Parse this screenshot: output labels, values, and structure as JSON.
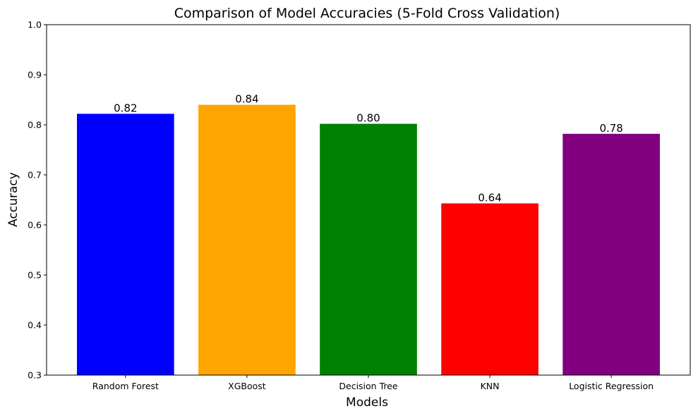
{
  "chart_data": {
    "type": "bar",
    "title": "Comparison of Model Accuracies (5-Fold Cross Validation)",
    "xlabel": "Models",
    "ylabel": "Accuracy",
    "categories": [
      "Random Forest",
      "XGBoost",
      "Decision Tree",
      "KNN",
      "Logistic Regression"
    ],
    "values": [
      0.822,
      0.84,
      0.802,
      0.643,
      0.782
    ],
    "value_labels": [
      "0.82",
      "0.84",
      "0.80",
      "0.64",
      "0.78"
    ],
    "colors": [
      "#0000ff",
      "#ffa500",
      "#008000",
      "#ff0000",
      "#800080"
    ],
    "ylim": [
      0.3,
      1.0
    ],
    "yticks": [
      0.3,
      0.4,
      0.5,
      0.6,
      0.7,
      0.8,
      0.9,
      1.0
    ],
    "ytick_labels": [
      "0.3",
      "0.4",
      "0.5",
      "0.6",
      "0.7",
      "0.8",
      "0.9",
      "1.0"
    ],
    "grid": false,
    "legend": false
  }
}
